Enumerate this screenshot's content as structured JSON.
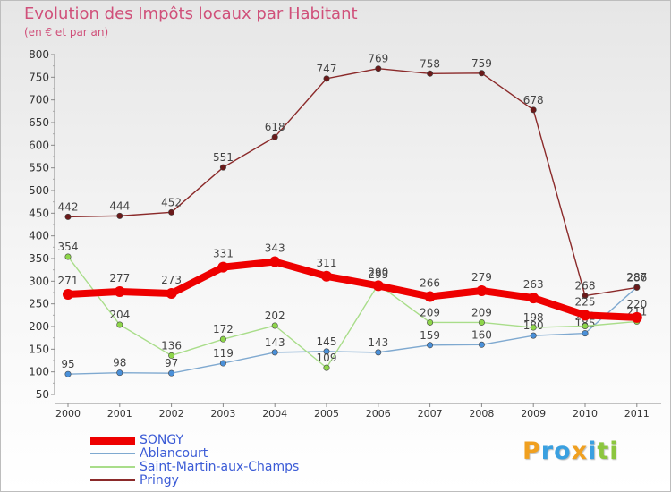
{
  "chart_data": {
    "type": "line",
    "title": "Evolution des Impôts locaux par Habitant",
    "subtitle": "(en € et par an)",
    "categories": [
      "2000",
      "2001",
      "2002",
      "2003",
      "2004",
      "2005",
      "2006",
      "2007",
      "2008",
      "2009",
      "2010",
      "2011"
    ],
    "ylim": [
      50,
      800
    ],
    "yticks": [
      50,
      100,
      150,
      200,
      250,
      300,
      350,
      400,
      450,
      500,
      550,
      600,
      650,
      700,
      750,
      800
    ],
    "grid": false,
    "legend_position": "bottom-left",
    "series": [
      {
        "name": "SONGY",
        "color": "#ee0000",
        "point_color": "#ee0000",
        "emphasis": true,
        "values": [
          271,
          277,
          273,
          331,
          343,
          311,
          290,
          266,
          279,
          263,
          225,
          220
        ]
      },
      {
        "name": "Ablancourt",
        "color": "#7fa9d0",
        "point_color": "#4a90d9",
        "emphasis": false,
        "values": [
          95,
          98,
          97,
          119,
          143,
          145,
          143,
          159,
          160,
          180,
          185,
          287
        ]
      },
      {
        "name": "Saint-Martin-aux-Champs",
        "color": "#a9dd8a",
        "point_color": "#8ed64a",
        "emphasis": false,
        "values": [
          354,
          204,
          136,
          172,
          202,
          109,
          293,
          209,
          209,
          198,
          201,
          211
        ]
      },
      {
        "name": "Pringy",
        "color": "#8b2a2a",
        "point_color": "#6b1a1a",
        "emphasis": false,
        "values": [
          442,
          444,
          452,
          551,
          618,
          747,
          769,
          758,
          759,
          678,
          268,
          286
        ]
      }
    ]
  },
  "logo": {
    "letters": [
      {
        "ch": "P",
        "color": "#f0a020"
      },
      {
        "ch": "r",
        "color": "#3aa0e0"
      },
      {
        "ch": "o",
        "color": "#3aa0e0"
      },
      {
        "ch": "x",
        "color": "#f0a020"
      },
      {
        "ch": "i",
        "color": "#3aa0e0"
      },
      {
        "ch": "t",
        "color": "#8cc63f"
      },
      {
        "ch": "i",
        "color": "#8cc63f"
      }
    ]
  }
}
